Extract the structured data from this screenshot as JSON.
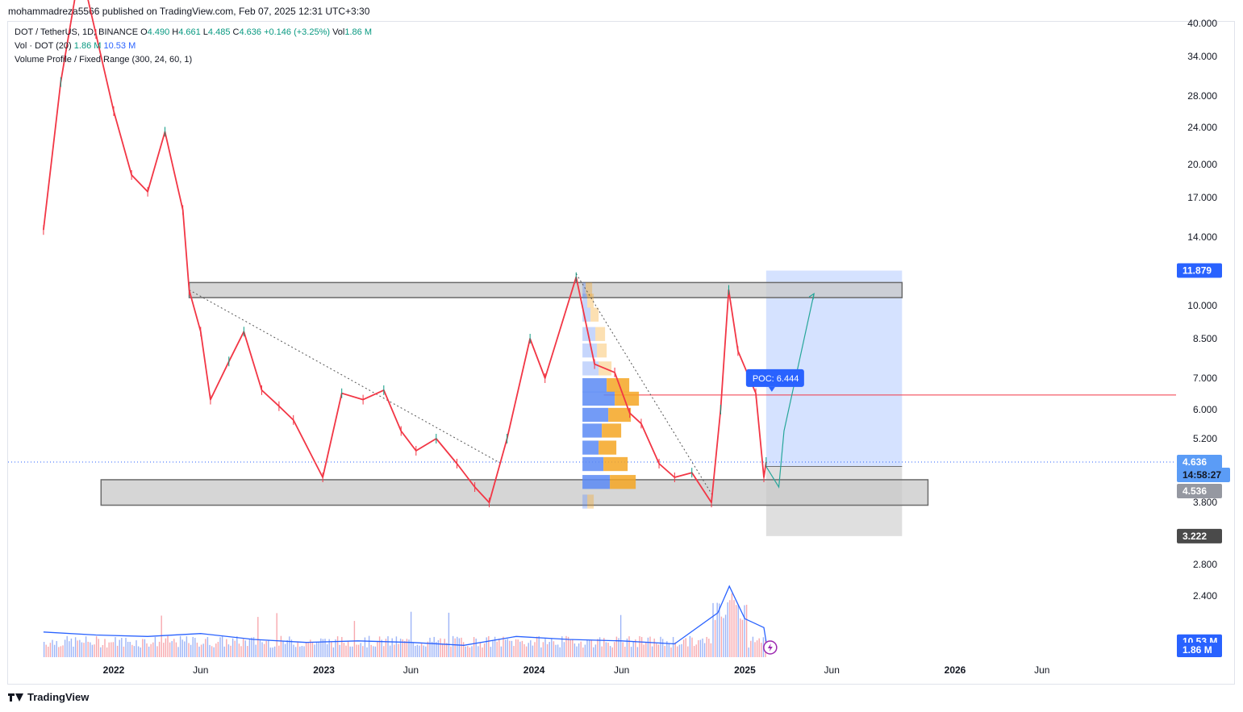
{
  "publisher": "mohammadreza5566 published on TradingView.com, Feb 07, 2025 12:31 UTC+3:30",
  "legend": {
    "symbol": "DOT / TetherUS, 1D, BINANCE",
    "o_label": "O",
    "o": "4.490",
    "h_label": "H",
    "h": "4.661",
    "l_label": "L",
    "l": "4.485",
    "c_label": "C",
    "c": "4.636",
    "change": "+0.146 (+3.25%)",
    "vol_label": "Vol",
    "vol": "1.86 M",
    "vol_indicator": "Vol · DOT (20)",
    "vol_value": "1.86 M",
    "vol_ma_value": "10.53 M",
    "vp_indicator": "Volume Profile / Fixed Range (300, 24, 60, 1)"
  },
  "footer": {
    "brand": "TradingView"
  },
  "colors": {
    "up": "#089981",
    "down": "#f23645",
    "accent": "#2962ff",
    "poc_line": "#f23645",
    "zone_fill": "#c8c8c8",
    "target_fill": "#bfd3ff"
  },
  "chart_data": {
    "type": "line",
    "title": "DOT / TetherUS, 1D, BINANCE",
    "y_scale": "log",
    "y_ticks": [
      "40.000",
      "34.000",
      "28.000",
      "24.000",
      "20.000",
      "17.000",
      "14.000",
      "10.000",
      "8.500",
      "7.000",
      "6.000",
      "5.200",
      "3.800",
      "2.800",
      "2.400"
    ],
    "x_ticks": [
      "2022",
      "Jun",
      "2023",
      "Jun",
      "2024",
      "Jun",
      "2025",
      "Jun",
      "2026",
      "Jun"
    ],
    "x_ticks_bold": [
      true,
      false,
      true,
      false,
      true,
      false,
      true,
      false,
      true,
      false
    ],
    "price_series": {
      "name": "DOT / TetherUS",
      "x": [
        "2021-09-01",
        "2021-10-01",
        "2021-11-04",
        "2021-12-01",
        "2022-01-01",
        "2022-02-01",
        "2022-03-01",
        "2022-03-31",
        "2022-05-01",
        "2022-05-12",
        "2022-06-01",
        "2022-06-18",
        "2022-07-20",
        "2022-08-15",
        "2022-09-15",
        "2022-10-15",
        "2022-11-09",
        "2022-12-30",
        "2023-02-01",
        "2023-03-10",
        "2023-04-15",
        "2023-05-15",
        "2023-06-10",
        "2023-07-15",
        "2023-08-20",
        "2023-09-20",
        "2023-10-15",
        "2023-11-15",
        "2023-12-25",
        "2024-01-20",
        "2024-03-14",
        "2024-04-15",
        "2024-05-20",
        "2024-06-15",
        "2024-07-05",
        "2024-08-05",
        "2024-09-01",
        "2024-10-01",
        "2024-11-04",
        "2024-11-20",
        "2024-12-04",
        "2024-12-20",
        "2025-01-20",
        "2025-02-03",
        "2025-02-07"
      ],
      "y": [
        14.5,
        30.0,
        53.0,
        38.0,
        26.0,
        19.0,
        17.5,
        23.5,
        16.0,
        10.8,
        8.8,
        6.3,
        7.6,
        8.8,
        6.6,
        6.1,
        5.7,
        4.3,
        6.5,
        6.3,
        6.6,
        5.4,
        4.9,
        5.2,
        4.6,
        4.1,
        3.8,
        5.2,
        8.5,
        7.0,
        11.5,
        7.5,
        7.2,
        5.9,
        5.6,
        4.6,
        4.3,
        4.4,
        3.8,
        6.0,
        10.8,
        8.0,
        6.5,
        4.3,
        4.636
      ]
    },
    "volume_series": {
      "name": "Vol · DOT (20)",
      "x": [
        "2021-09-01",
        "2021-12-01",
        "2022-03-01",
        "2022-06-01",
        "2022-09-01",
        "2022-12-01",
        "2023-03-01",
        "2023-06-01",
        "2023-09-01",
        "2023-12-01",
        "2024-03-01",
        "2024-06-01",
        "2024-09-01",
        "2024-11-15",
        "2024-12-05",
        "2025-01-01",
        "2025-02-03",
        "2025-02-07"
      ],
      "ma": [
        17,
        15,
        14,
        16,
        12,
        10,
        11,
        10,
        8,
        14,
        12,
        11,
        9,
        30,
        48,
        26,
        20,
        10.53
      ],
      "last_volume": 1.86
    },
    "overlays": {
      "resistance_zone": {
        "low": 10.4,
        "high": 11.2,
        "from": "2022-05-12",
        "to": "2025-10-01"
      },
      "support_zone": {
        "low": 3.75,
        "high": 4.25,
        "from": "2021-12-10",
        "to": "2025-11-15"
      },
      "poc": {
        "value": 6.444,
        "label": "POC: 6.444"
      },
      "long_position": {
        "entry": 4.536,
        "target": 11.879,
        "stop": 3.222,
        "from": "2025-02-07",
        "to": "2025-10-01"
      },
      "trendline_1": {
        "from": {
          "x": "2022-05-12",
          "y": 10.8
        },
        "to": {
          "x": "2023-11-05",
          "y": 4.6
        }
      },
      "trendline_2": {
        "from": {
          "x": "2024-03-14",
          "y": 11.7
        },
        "to": {
          "x": "2024-11-05",
          "y": 3.95
        }
      },
      "projection": {
        "x": [
          "2025-02-07",
          "2025-03-01",
          "2025-03-10",
          "2025-05-01"
        ],
        "y": [
          4.536,
          4.1,
          5.4,
          10.6
        ]
      },
      "current_price": 4.636
    },
    "price_labels": [
      {
        "text": "11.879",
        "color": "#2962ff",
        "text_color": "#ffffff"
      },
      {
        "text": "4.636",
        "color": "#5b9cf6",
        "text_color": "#ffffff"
      },
      {
        "text": "14:58:27",
        "color": "#5b9cf6",
        "text_color": "#131722"
      },
      {
        "text": "4.536",
        "color": "#9598a1",
        "text_color": "#ffffff"
      },
      {
        "text": "3.222",
        "color": "#4a4a4a",
        "text_color": "#ffffff"
      },
      {
        "text": "10.53 M",
        "color": "#2962ff",
        "text_color": "#ffffff"
      },
      {
        "text": "1.86 M",
        "color": "#2962ff",
        "text_color": "#ffffff"
      }
    ]
  }
}
